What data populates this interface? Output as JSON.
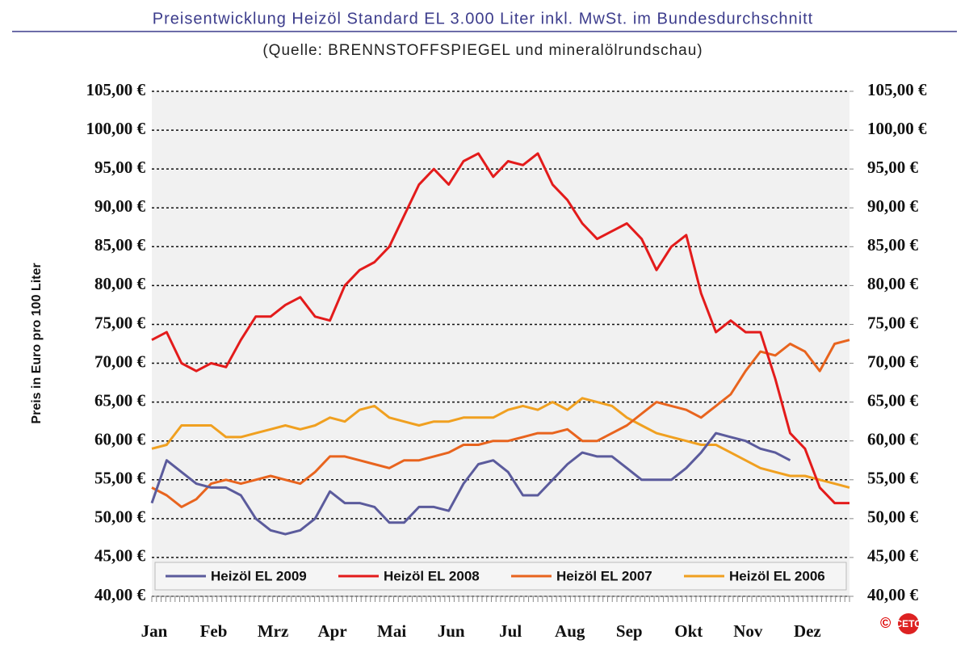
{
  "chart_data": {
    "type": "line",
    "title": "Preisentwicklung Heizöl Standard EL 3.000 Liter inkl. MwSt. im Bundesdurchschnitt",
    "subtitle": "(Quelle: BRENNSTOFFSPIEGEL und mineralölrundschau)",
    "y_label": "Preis in Euro pro 100 Liter",
    "copyright": "©",
    "logo": "CETO",
    "categories": [
      "Jan",
      null,
      null,
      null,
      "Feb",
      null,
      null,
      null,
      "Mrz",
      null,
      null,
      null,
      "Apr",
      null,
      null,
      null,
      "Mai",
      null,
      null,
      null,
      "Jun",
      null,
      null,
      null,
      "Jul",
      null,
      null,
      null,
      "Aug",
      null,
      null,
      null,
      "Sep",
      null,
      null,
      null,
      "Okt",
      null,
      null,
      null,
      "Nov",
      null,
      null,
      null,
      "Dez",
      null,
      null,
      null
    ],
    "series": [
      {
        "name": "Heizöl EL 2009",
        "color": "#5b5b9c",
        "values": [
          52,
          57.5,
          56,
          54.5,
          54,
          54,
          53,
          50,
          48.5,
          48,
          48.5,
          50,
          53.5,
          52,
          52,
          51.5,
          49.5,
          49.5,
          51.5,
          51.5,
          51,
          54.5,
          57,
          57.5,
          56,
          53,
          53,
          55,
          57,
          58.5,
          58,
          58,
          56.5,
          55,
          55,
          55,
          56.5,
          58.5,
          61,
          60.5,
          60,
          59,
          58.5,
          57.5,
          null,
          null,
          null,
          null
        ]
      },
      {
        "name": "Heizöl EL 2008",
        "color": "#e31b1b",
        "values": [
          73,
          74,
          70,
          69,
          70,
          69.5,
          73,
          76,
          76,
          77.5,
          78.5,
          76,
          75.5,
          80,
          82,
          83,
          85,
          89,
          93,
          95,
          93,
          96,
          97,
          94,
          96,
          95.5,
          97,
          93,
          91,
          88,
          86,
          87,
          88,
          86,
          82,
          85,
          86.5,
          79,
          74,
          75.5,
          74,
          74,
          68,
          61,
          59,
          54,
          52,
          52
        ]
      },
      {
        "name": "Heizöl EL 2007",
        "color": "#e8641e",
        "values": [
          54,
          53,
          51.5,
          52.5,
          54.5,
          55,
          54.5,
          55,
          55.5,
          55,
          54.5,
          56,
          58,
          58,
          57.5,
          57,
          56.5,
          57.5,
          57.5,
          58,
          58.5,
          59.5,
          59.5,
          60,
          60,
          60.5,
          61,
          61,
          61.5,
          60,
          60,
          61,
          62,
          63.5,
          65,
          64.5,
          64,
          63,
          64.5,
          66,
          69,
          71.5,
          71,
          72.5,
          71.5,
          69,
          72.5,
          73
        ]
      },
      {
        "name": "Heizöl EL 2006",
        "color": "#f0a020",
        "values": [
          59,
          59.5,
          62,
          62,
          62,
          60.5,
          60.5,
          61,
          61.5,
          62,
          61.5,
          62,
          63,
          62.5,
          64,
          64.5,
          63,
          62.5,
          62,
          62.5,
          62.5,
          63,
          63,
          63,
          64,
          64.5,
          64,
          65,
          64,
          65.5,
          65,
          64.5,
          63,
          62,
          61,
          60.5,
          60,
          59.5,
          59.5,
          58.5,
          57.5,
          56.5,
          56,
          55.5,
          55.5,
          55,
          54.5,
          54
        ]
      }
    ],
    "ylim": [
      40,
      105
    ],
    "yticks": [
      {
        "value": 40,
        "label": "40,00 €"
      },
      {
        "value": 45,
        "label": "45,00 €"
      },
      {
        "value": 50,
        "label": "50,00 €"
      },
      {
        "value": 55,
        "label": "55,00 €"
      },
      {
        "value": 60,
        "label": "60,00 €"
      },
      {
        "value": 65,
        "label": "65,00 €"
      },
      {
        "value": 70,
        "label": "70,00 €"
      },
      {
        "value": 75,
        "label": "75,00 €"
      },
      {
        "value": 80,
        "label": "80,00 €"
      },
      {
        "value": 85,
        "label": "85,00 €"
      },
      {
        "value": 90,
        "label": "90,00 €"
      },
      {
        "value": 95,
        "label": "95,00 €"
      },
      {
        "value": 100,
        "label": "100,00 €"
      },
      {
        "value": 105,
        "label": "105,00 €"
      }
    ],
    "y2lim": [
      40,
      105
    ],
    "y2ticks": [
      {
        "value": 40,
        "label": "40,00 €"
      },
      {
        "value": 45,
        "label": "45,00 €"
      },
      {
        "value": 50,
        "label": "50,00 €"
      },
      {
        "value": 55,
        "label": "55,00 €"
      },
      {
        "value": 60,
        "label": "60,00 €"
      },
      {
        "value": 65,
        "label": "65,00 €"
      },
      {
        "value": 70,
        "label": "70,00 €"
      },
      {
        "value": 75,
        "label": "75,00 €"
      },
      {
        "value": 80,
        "label": "80,00 €"
      },
      {
        "value": 85,
        "label": "85,00 €"
      },
      {
        "value": 90,
        "label": "90,00 €"
      },
      {
        "value": 95,
        "label": "95,00 €"
      },
      {
        "value": 100,
        "label": "100,00 €"
      },
      {
        "value": 105,
        "label": "105,00 €"
      }
    ],
    "grid": true,
    "legend": "bottom"
  }
}
